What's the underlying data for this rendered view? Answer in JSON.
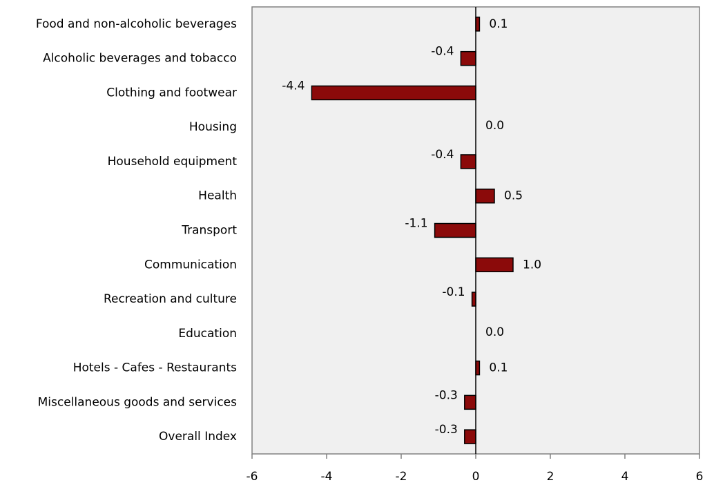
{
  "chart_data": {
    "type": "barh",
    "categories": [
      "Food and non-alcoholic beverages",
      "Alcoholic beverages and tobacco",
      "Clothing and footwear",
      "Housing",
      "Household equipment",
      "Health",
      "Transport",
      "Communication",
      "Recreation and culture",
      "Education",
      "Hotels - Cafes - Restaurants",
      "Miscellaneous goods and services",
      "Overall Index"
    ],
    "values": [
      0.1,
      -0.4,
      -4.4,
      0,
      -0.4,
      0.5,
      -1.1,
      1,
      -0.1,
      0,
      0.1,
      -0.3,
      -0.3
    ],
    "value_labels": [
      "0.1",
      "-0.4",
      "-4.4",
      "0.0",
      "-0.4",
      "0.5",
      "-1.1",
      "1.0",
      "-0.1",
      "0.0",
      "0.1",
      "-0.3",
      "-0.3"
    ],
    "color": "#8b0a0a",
    "xlim": [
      -6,
      6
    ],
    "xticks": [
      -6,
      -4,
      -2,
      0,
      2,
      4,
      6
    ]
  }
}
